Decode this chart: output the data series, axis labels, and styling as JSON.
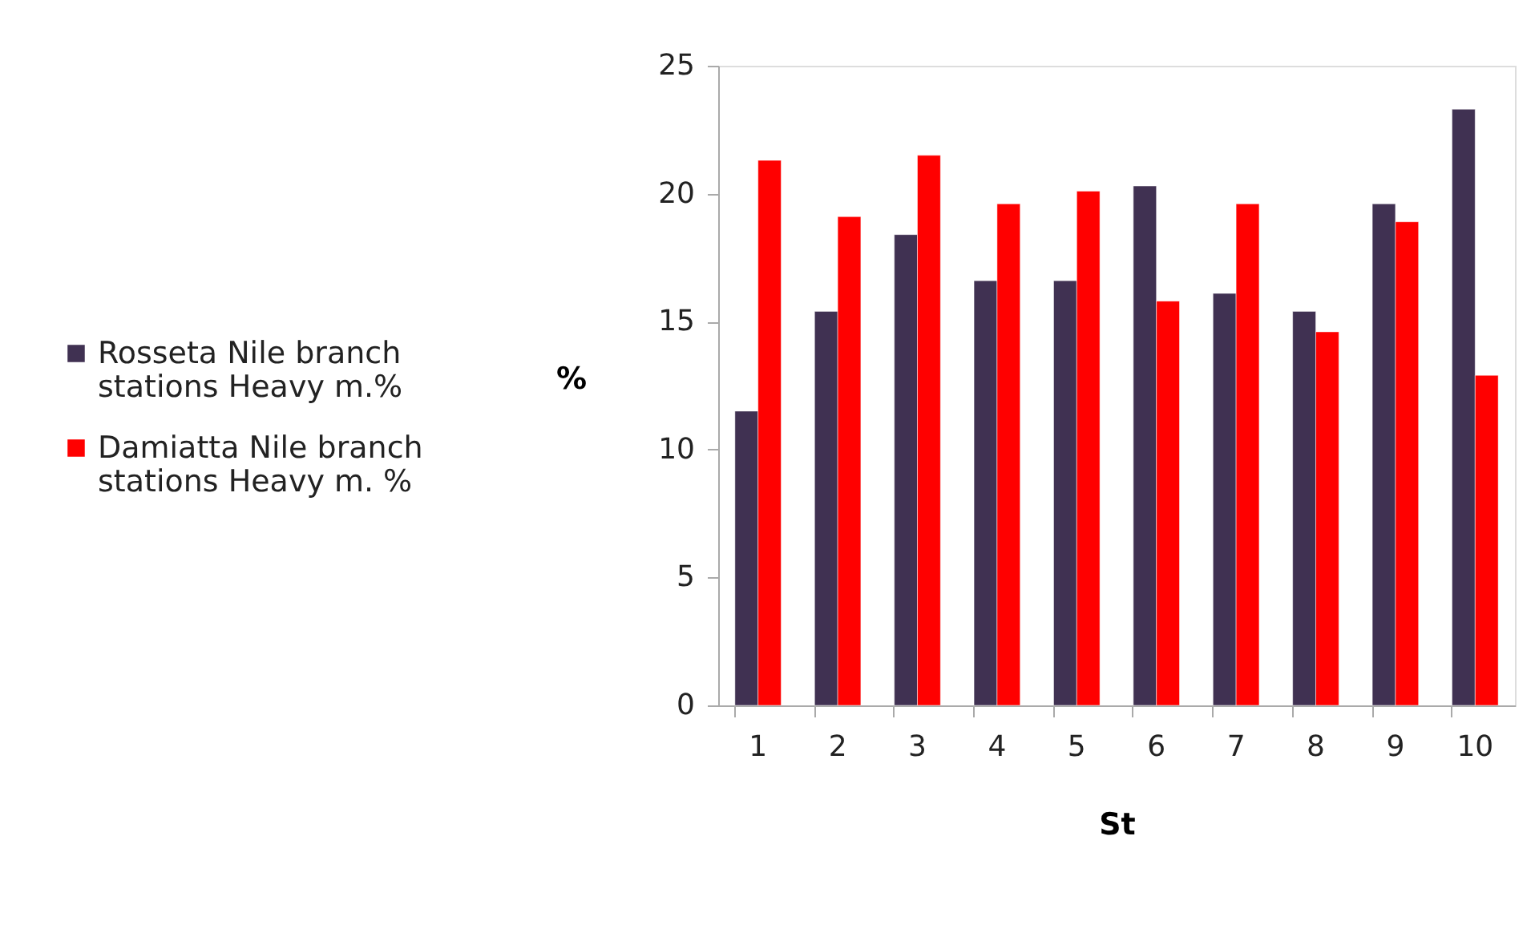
{
  "chart_data": {
    "type": "bar",
    "xlabel": "St",
    "ylabel": "%",
    "categories": [
      "1",
      "2",
      "3",
      "4",
      "5",
      "6",
      "7",
      "8",
      "9",
      "10"
    ],
    "series": [
      {
        "name": "Rosseta Nile branch stations Heavy m.%",
        "color": "#403152",
        "values": [
          11.5,
          15.4,
          18.4,
          16.6,
          16.6,
          20.3,
          16.1,
          15.4,
          19.6,
          23.3
        ]
      },
      {
        "name": "Damiatta Nile branch stations Heavy m. %",
        "color": "#ff0000",
        "values": [
          21.3,
          19.1,
          21.5,
          19.6,
          20.1,
          15.8,
          19.6,
          14.6,
          18.9,
          12.9
        ]
      }
    ],
    "ylim": [
      0,
      25
    ],
    "yticks": [
      0,
      5,
      10,
      15,
      20,
      25
    ],
    "grid": false,
    "legend": "left"
  }
}
